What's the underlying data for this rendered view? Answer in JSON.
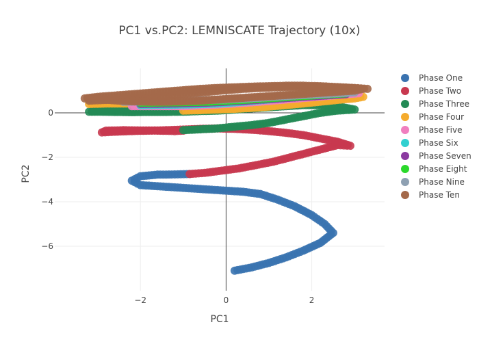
{
  "chart_data": {
    "type": "scatter",
    "title": "PC1 vs.PC2: LEMNISCATE Trajectory (10x)",
    "xlabel": "PC1",
    "ylabel": "PC2",
    "xlim": [
      -4.0,
      3.7
    ],
    "ylim": [
      -8.0,
      2.0
    ],
    "xticks": [
      -2,
      0,
      2
    ],
    "yticks": [
      -6,
      -4,
      -2,
      0
    ],
    "grid": true,
    "legend_position": "right",
    "series": [
      {
        "name": "Phase One",
        "color": "#3a73b0",
        "points": [
          [
            0.2,
            -7.1
          ],
          [
            0.6,
            -6.95
          ],
          [
            1.0,
            -6.75
          ],
          [
            1.4,
            -6.5
          ],
          [
            1.8,
            -6.2
          ],
          [
            2.2,
            -5.85
          ],
          [
            2.5,
            -5.4
          ],
          [
            2.3,
            -5.0
          ],
          [
            2.0,
            -4.6
          ],
          [
            1.6,
            -4.2
          ],
          [
            1.2,
            -3.9
          ],
          [
            0.8,
            -3.65
          ],
          [
            0.4,
            -3.55
          ],
          [
            0.0,
            -3.5
          ],
          [
            -0.4,
            -3.45
          ],
          [
            -0.8,
            -3.4
          ],
          [
            -1.2,
            -3.35
          ],
          [
            -1.6,
            -3.3
          ],
          [
            -2.0,
            -3.25
          ],
          [
            -2.2,
            -3.05
          ],
          [
            -2.0,
            -2.85
          ],
          [
            -1.6,
            -2.78
          ],
          [
            -1.2,
            -2.77
          ],
          [
            -0.85,
            -2.75
          ]
        ]
      },
      {
        "name": "Phase Two",
        "color": "#c8384f",
        "points": [
          [
            -0.85,
            -2.75
          ],
          [
            -0.5,
            -2.7
          ],
          [
            -0.1,
            -2.6
          ],
          [
            0.3,
            -2.5
          ],
          [
            0.7,
            -2.35
          ],
          [
            1.1,
            -2.2
          ],
          [
            1.5,
            -2.0
          ],
          [
            1.9,
            -1.8
          ],
          [
            2.3,
            -1.6
          ],
          [
            2.6,
            -1.45
          ],
          [
            2.9,
            -1.48
          ],
          [
            2.6,
            -1.3
          ],
          [
            2.2,
            -1.15
          ],
          [
            1.8,
            -1.0
          ],
          [
            1.4,
            -0.9
          ],
          [
            1.0,
            -0.82
          ],
          [
            0.6,
            -0.76
          ],
          [
            0.2,
            -0.72
          ],
          [
            -0.2,
            -0.7
          ],
          [
            -0.6,
            -0.72
          ],
          [
            -1.0,
            -0.75
          ],
          [
            -1.4,
            -0.78
          ],
          [
            -1.8,
            -0.8
          ],
          [
            -2.2,
            -0.82
          ],
          [
            -2.6,
            -0.85
          ],
          [
            -2.9,
            -0.88
          ],
          [
            -2.8,
            -0.8
          ],
          [
            -2.4,
            -0.78
          ],
          [
            -2.0,
            -0.79
          ],
          [
            -1.6,
            -0.8
          ],
          [
            -1.2,
            -0.82
          ],
          [
            -1.0,
            -0.8
          ]
        ]
      },
      {
        "name": "Phase Three",
        "color": "#238a55",
        "points": [
          [
            -1.0,
            -0.78
          ],
          [
            -0.6,
            -0.74
          ],
          [
            -0.2,
            -0.7
          ],
          [
            0.2,
            -0.62
          ],
          [
            0.6,
            -0.55
          ],
          [
            1.0,
            -0.45
          ],
          [
            1.4,
            -0.3
          ],
          [
            1.8,
            -0.15
          ],
          [
            2.2,
            0.0
          ],
          [
            2.6,
            0.1
          ],
          [
            3.0,
            0.15
          ],
          [
            2.6,
            0.3
          ],
          [
            2.2,
            0.35
          ],
          [
            1.8,
            0.35
          ],
          [
            1.4,
            0.3
          ],
          [
            1.0,
            0.25
          ],
          [
            0.6,
            0.2
          ],
          [
            0.2,
            0.15
          ],
          [
            -0.2,
            0.1
          ],
          [
            -0.6,
            0.08
          ],
          [
            -1.0,
            0.05
          ],
          [
            -1.4,
            0.04
          ],
          [
            -1.8,
            0.04
          ],
          [
            -2.2,
            0.03
          ],
          [
            -2.6,
            0.04
          ],
          [
            -3.0,
            0.05
          ],
          [
            -3.2,
            0.05
          ],
          [
            -2.8,
            0.12
          ],
          [
            -2.4,
            0.16
          ],
          [
            -2.0,
            0.18
          ],
          [
            -1.6,
            0.18
          ],
          [
            -1.2,
            0.15
          ]
        ]
      },
      {
        "name": "Phase Four",
        "color": "#f5ab2d",
        "points": [
          [
            -1.0,
            0.1
          ],
          [
            -0.6,
            0.12
          ],
          [
            -0.2,
            0.15
          ],
          [
            0.2,
            0.18
          ],
          [
            0.6,
            0.22
          ],
          [
            1.0,
            0.28
          ],
          [
            1.4,
            0.35
          ],
          [
            1.8,
            0.42
          ],
          [
            2.2,
            0.5
          ],
          [
            2.6,
            0.58
          ],
          [
            3.0,
            0.65
          ],
          [
            3.2,
            0.72
          ],
          [
            2.8,
            0.78
          ],
          [
            2.4,
            0.8
          ],
          [
            2.0,
            0.8
          ],
          [
            1.6,
            0.78
          ],
          [
            1.2,
            0.72
          ],
          [
            0.8,
            0.66
          ],
          [
            0.4,
            0.6
          ],
          [
            0.0,
            0.55
          ],
          [
            -0.4,
            0.5
          ],
          [
            -0.8,
            0.47
          ],
          [
            -1.2,
            0.45
          ],
          [
            -1.6,
            0.43
          ],
          [
            -2.0,
            0.42
          ],
          [
            -2.4,
            0.42
          ],
          [
            -2.8,
            0.42
          ],
          [
            -3.2,
            0.4
          ]
        ]
      },
      {
        "name": "Phase Five",
        "color": "#f07fbf",
        "points": [
          [
            -2.2,
            0.3
          ],
          [
            -1.6,
            0.3
          ],
          [
            -1.0,
            0.3
          ],
          [
            -0.4,
            0.35
          ],
          [
            0.2,
            0.42
          ],
          [
            0.8,
            0.5
          ],
          [
            1.4,
            0.6
          ],
          [
            2.0,
            0.7
          ],
          [
            2.6,
            0.8
          ],
          [
            3.1,
            0.88
          ]
        ]
      },
      {
        "name": "Phase Six",
        "color": "#31d0d0",
        "points": [
          [
            -2.0,
            0.35
          ],
          [
            -1.4,
            0.36
          ],
          [
            -0.8,
            0.38
          ],
          [
            -0.2,
            0.42
          ],
          [
            0.4,
            0.5
          ],
          [
            1.0,
            0.6
          ],
          [
            1.6,
            0.7
          ],
          [
            2.2,
            0.8
          ],
          [
            2.8,
            0.88
          ]
        ]
      },
      {
        "name": "Phase Seven",
        "color": "#8b3aa0",
        "points": [
          [
            -2.0,
            0.4
          ],
          [
            -1.2,
            0.42
          ],
          [
            -0.4,
            0.46
          ],
          [
            0.4,
            0.54
          ],
          [
            1.2,
            0.64
          ],
          [
            2.0,
            0.74
          ],
          [
            2.8,
            0.84
          ]
        ]
      },
      {
        "name": "Phase Eight",
        "color": "#2bd92b",
        "points": [
          [
            -2.0,
            0.45
          ],
          [
            -1.2,
            0.47
          ],
          [
            -0.4,
            0.5
          ],
          [
            0.4,
            0.58
          ],
          [
            1.2,
            0.68
          ],
          [
            2.0,
            0.78
          ],
          [
            2.8,
            0.88
          ]
        ]
      },
      {
        "name": "Phase Nine",
        "color": "#8ea0b2",
        "points": [
          [
            -2.4,
            0.5
          ],
          [
            -1.6,
            0.52
          ],
          [
            -0.8,
            0.55
          ],
          [
            0.0,
            0.6
          ],
          [
            0.8,
            0.68
          ],
          [
            1.6,
            0.78
          ],
          [
            2.4,
            0.86
          ],
          [
            3.0,
            0.92
          ]
        ]
      },
      {
        "name": "Phase Ten",
        "color": "#a4694a",
        "points": [
          [
            -3.2,
            0.55
          ],
          [
            -2.8,
            0.58
          ],
          [
            -2.4,
            0.62
          ],
          [
            -2.0,
            0.66
          ],
          [
            -1.6,
            0.72
          ],
          [
            -1.2,
            0.8
          ],
          [
            -0.8,
            0.88
          ],
          [
            -0.4,
            0.95
          ],
          [
            0.0,
            1.02
          ],
          [
            0.4,
            1.08
          ],
          [
            0.8,
            1.12
          ],
          [
            1.2,
            1.15
          ],
          [
            1.6,
            1.17
          ],
          [
            2.0,
            1.17
          ],
          [
            2.4,
            1.15
          ],
          [
            2.8,
            1.12
          ],
          [
            3.2,
            1.08
          ],
          [
            3.0,
            1.0
          ],
          [
            2.6,
            0.95
          ],
          [
            2.2,
            0.9
          ],
          [
            1.8,
            0.85
          ],
          [
            1.4,
            0.8
          ],
          [
            1.0,
            0.75
          ],
          [
            0.6,
            0.7
          ],
          [
            0.2,
            0.65
          ],
          [
            -0.2,
            0.6
          ],
          [
            -0.6,
            0.55
          ],
          [
            -1.0,
            0.52
          ],
          [
            -1.4,
            0.5
          ],
          [
            -1.8,
            0.5
          ],
          [
            -2.2,
            0.52
          ],
          [
            -2.6,
            0.56
          ],
          [
            -3.0,
            0.62
          ],
          [
            -3.3,
            0.65
          ],
          [
            -3.0,
            0.72
          ],
          [
            -2.6,
            0.78
          ],
          [
            -2.2,
            0.84
          ],
          [
            -1.8,
            0.9
          ],
          [
            -1.4,
            0.96
          ],
          [
            -1.0,
            1.02
          ],
          [
            -0.6,
            1.08
          ],
          [
            -0.2,
            1.12
          ],
          [
            0.2,
            1.15
          ],
          [
            0.6,
            1.18
          ],
          [
            1.0,
            1.2
          ],
          [
            1.4,
            1.22
          ],
          [
            1.8,
            1.22
          ],
          [
            2.2,
            1.2
          ],
          [
            2.6,
            1.16
          ],
          [
            3.0,
            1.12
          ],
          [
            3.3,
            1.08
          ]
        ]
      }
    ]
  }
}
